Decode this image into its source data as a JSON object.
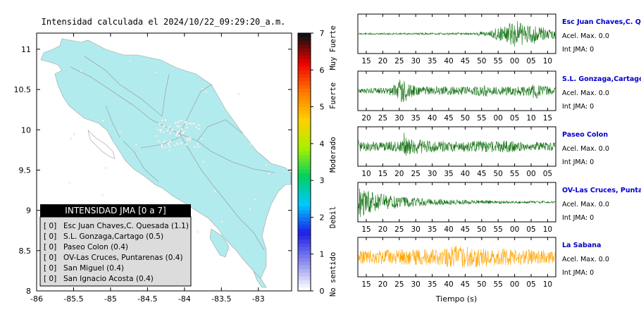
{
  "map": {
    "title": "Intensidad calculada el 2024/10/22_09:29:20_a.m.",
    "x_ticks": [
      "-86",
      "-85.5",
      "-85",
      "-84.5",
      "-84",
      "-83.5",
      "-83"
    ],
    "y_ticks": [
      "11",
      "10.5",
      "10",
      "9.5",
      "9",
      "8.5",
      "8"
    ],
    "xlim": [
      -86,
      -82.55
    ],
    "ylim": [
      8,
      11.2
    ],
    "land_color": "#b2ebee",
    "frame_color": "#000000"
  },
  "colorbar": {
    "tick_labels": [
      "0",
      "1",
      "2",
      "3",
      "4",
      "5",
      "6",
      "7"
    ],
    "category_labels": [
      "No sentido",
      "Debil",
      "Moderado",
      "Fuerte",
      "Muy Fuerte"
    ],
    "colors": [
      "#ffffff",
      "#8888ee",
      "#1e1ee6",
      "#00c8ff",
      "#00d060",
      "#a8f000",
      "#ffd000",
      "#ff7800",
      "#ee0000",
      "#101010"
    ]
  },
  "legend": {
    "title": "INTENSIDAD JMA [0 a 7]",
    "items": [
      {
        "badge": "[ 0]",
        "text": "Esc Juan Chaves,C. Quesada (1.1)"
      },
      {
        "badge": "[ 0]",
        "text": "S.L. Gonzaga,Cartago (0.5)"
      },
      {
        "badge": "[ 0]",
        "text": "Paseo Colon (0.4)"
      },
      {
        "badge": "[ 0]",
        "text": "OV-Las Cruces, Puntarenas (0.4)"
      },
      {
        "badge": "[ 0]",
        "text": "San Miguel (0.4)"
      },
      {
        "badge": "[ 0]",
        "text": "San Ignacio Acosta (0.4)"
      }
    ]
  },
  "seismograms": {
    "xlabel": "Tiempo (s)",
    "trace_color": "#0a6e0a",
    "highlight_color": "#ffa500",
    "station_name_color": "#0000cc",
    "panels": [
      {
        "name": "Esc Juan Chaves,C. Qu",
        "acel": "Acel. Max. 0.0",
        "int": "Int JMA: 0",
        "ticks": [
          "15",
          "20",
          "25",
          "30",
          "35",
          "40",
          "45",
          "50",
          "55",
          "00",
          "05",
          "10"
        ],
        "first_tick_sec": 15,
        "highlight": false,
        "envelope": [
          [
            0,
            0.05
          ],
          [
            0.6,
            0.06
          ],
          [
            0.62,
            0.15
          ],
          [
            0.66,
            0.1
          ],
          [
            0.7,
            0.35
          ],
          [
            0.75,
            0.5
          ],
          [
            0.8,
            0.8
          ],
          [
            0.85,
            0.55
          ],
          [
            0.9,
            0.6
          ],
          [
            0.95,
            0.35
          ],
          [
            1,
            0.3
          ]
        ]
      },
      {
        "name": "S.L. Gonzaga,Cartago",
        "acel": "Acel. Max. 0.0",
        "int": "Int JMA: 0",
        "ticks": [
          "20",
          "25",
          "30",
          "35",
          "40",
          "45",
          "50",
          "55",
          "00",
          "05",
          "10",
          "15"
        ],
        "first_tick_sec": 20,
        "highlight": false,
        "envelope": [
          [
            0,
            0.12
          ],
          [
            0.15,
            0.2
          ],
          [
            0.2,
            0.45
          ],
          [
            0.22,
            0.85
          ],
          [
            0.25,
            0.5
          ],
          [
            0.3,
            0.25
          ],
          [
            0.6,
            0.25
          ],
          [
            0.64,
            0.35
          ],
          [
            0.7,
            0.22
          ],
          [
            0.87,
            0.3
          ],
          [
            0.9,
            0.5
          ],
          [
            0.93,
            0.3
          ],
          [
            1,
            0.2
          ]
        ]
      },
      {
        "name": "Paseo Colon",
        "acel": "Acel. Max. 0.0",
        "int": "Int JMA: 0",
        "ticks": [
          "10",
          "15",
          "20",
          "25",
          "30",
          "35",
          "40",
          "45",
          "50",
          "55",
          "00",
          "05"
        ],
        "first_tick_sec": 10,
        "highlight": false,
        "envelope": [
          [
            0,
            0.35
          ],
          [
            0.05,
            0.25
          ],
          [
            0.22,
            0.3
          ],
          [
            0.23,
            0.95
          ],
          [
            0.25,
            0.45
          ],
          [
            0.5,
            0.3
          ],
          [
            0.75,
            0.35
          ],
          [
            0.85,
            0.25
          ],
          [
            1,
            0.25
          ]
        ]
      },
      {
        "name": "OV-Las Cruces, Puntar",
        "acel": "Acel. Max. 0.0",
        "int": "Int JMA: 0",
        "ticks": [
          "15",
          "20",
          "25",
          "30",
          "35",
          "40",
          "45",
          "50",
          "55",
          "00",
          "05",
          "10"
        ],
        "first_tick_sec": 15,
        "highlight": false,
        "envelope": [
          [
            0,
            0.95
          ],
          [
            0.03,
            0.7
          ],
          [
            0.1,
            0.5
          ],
          [
            0.2,
            0.35
          ],
          [
            0.35,
            0.2
          ],
          [
            0.55,
            0.12
          ],
          [
            0.75,
            0.08
          ],
          [
            1,
            0.05
          ]
        ]
      },
      {
        "name": "La Sabana",
        "acel": "Acel. Max. 0.0",
        "int": "Int JMA: 0",
        "ticks": [
          "15",
          "20",
          "25",
          "30",
          "35",
          "40",
          "45",
          "50",
          "55",
          "00",
          "05",
          "10"
        ],
        "first_tick_sec": 15,
        "highlight": true,
        "envelope": [
          [
            0,
            0.4
          ],
          [
            0.2,
            0.45
          ],
          [
            0.4,
            0.45
          ],
          [
            0.5,
            0.7
          ],
          [
            0.55,
            0.6
          ],
          [
            0.65,
            0.55
          ],
          [
            0.8,
            0.45
          ],
          [
            1,
            0.4
          ]
        ]
      }
    ]
  }
}
